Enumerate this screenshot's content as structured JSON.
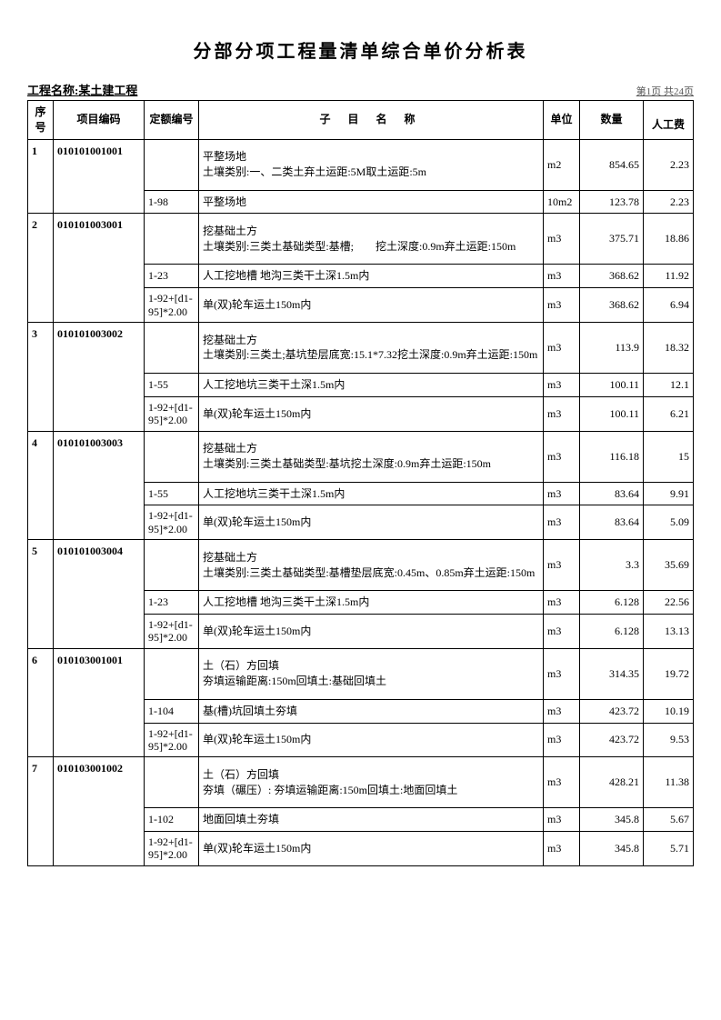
{
  "title": "分部分项工程量清单综合单价分析表",
  "project_label": "工程名称:",
  "project_name": "某土建工程",
  "page_info": "第1页 共24页",
  "headers": {
    "seq": "序号",
    "code": "项目编码",
    "quota": "定额编号",
    "name": "子 目 名 称",
    "unit": "单位",
    "qty": "数量",
    "labor": "人工费"
  },
  "rows": [
    {
      "seq": "1",
      "code": "010101001001",
      "quota": "",
      "name": "平整场地\n土壤类别:一、二类土弃土运距:5M取土运距:5m",
      "unit": "m2",
      "qty": "854.65",
      "labor": "2.23"
    },
    {
      "seq": "",
      "code": "",
      "quota": "1-98",
      "name": "平整场地",
      "unit": "10m2",
      "qty": "123.78",
      "labor": "2.23"
    },
    {
      "seq": "2",
      "code": "010101003001",
      "quota": "",
      "name": "挖基础土方\n土壤类别:三类土基础类型:基槽;　　挖土深度:0.9m弃土运距:150m",
      "unit": "m3",
      "qty": "375.71",
      "labor": "18.86"
    },
    {
      "seq": "",
      "code": "",
      "quota": "1-23",
      "name": "人工挖地槽 地沟三类干土深1.5m内",
      "unit": "m3",
      "qty": "368.62",
      "labor": "11.92"
    },
    {
      "seq": "",
      "code": "",
      "quota": "1-92+[d1-95]*2.00",
      "name": "单(双)轮车运土150m内",
      "unit": "m3",
      "qty": "368.62",
      "labor": "6.94"
    },
    {
      "seq": "3",
      "code": "010101003002",
      "quota": "",
      "name": "挖基础土方\n土壤类别:三类土;基坑垫层底宽:15.1*7.32挖土深度:0.9m弃土运距:150m",
      "unit": "m3",
      "qty": "113.9",
      "labor": "18.32"
    },
    {
      "seq": "",
      "code": "",
      "quota": "1-55",
      "name": "人工挖地坑三类干土深1.5m内",
      "unit": "m3",
      "qty": "100.11",
      "labor": "12.1"
    },
    {
      "seq": "",
      "code": "",
      "quota": "1-92+[d1-95]*2.00",
      "name": "单(双)轮车运土150m内",
      "unit": "m3",
      "qty": "100.11",
      "labor": "6.21"
    },
    {
      "seq": "4",
      "code": "010101003003",
      "quota": "",
      "name": "挖基础土方\n土壤类别:三类土基础类型:基坑挖土深度:0.9m弃土运距:150m",
      "unit": "m3",
      "qty": "116.18",
      "labor": "15"
    },
    {
      "seq": "",
      "code": "",
      "quota": "1-55",
      "name": "人工挖地坑三类干土深1.5m内",
      "unit": "m3",
      "qty": "83.64",
      "labor": "9.91"
    },
    {
      "seq": "",
      "code": "",
      "quota": "1-92+[d1-95]*2.00",
      "name": "单(双)轮车运土150m内",
      "unit": "m3",
      "qty": "83.64",
      "labor": "5.09"
    },
    {
      "seq": "5",
      "code": "010101003004",
      "quota": "",
      "name": "挖基础土方\n土壤类别:三类土基础类型:基槽垫层底宽:0.45m、0.85m弃土运距:150m",
      "unit": "m3",
      "qty": "3.3",
      "labor": "35.69"
    },
    {
      "seq": "",
      "code": "",
      "quota": "1-23",
      "name": "人工挖地槽 地沟三类干土深1.5m内",
      "unit": "m3",
      "qty": "6.128",
      "labor": "22.56"
    },
    {
      "seq": "",
      "code": "",
      "quota": "1-92+[d1-95]*2.00",
      "name": "单(双)轮车运土150m内",
      "unit": "m3",
      "qty": "6.128",
      "labor": "13.13"
    },
    {
      "seq": "6",
      "code": "010103001001",
      "quota": "",
      "name": "土（石）方回填\n夯填运输距离:150m回填土:基础回填土",
      "unit": "m3",
      "qty": "314.35",
      "labor": "19.72"
    },
    {
      "seq": "",
      "code": "",
      "quota": "1-104",
      "name": "基(槽)坑回填土夯填",
      "unit": "m3",
      "qty": "423.72",
      "labor": "10.19"
    },
    {
      "seq": "",
      "code": "",
      "quota": "1-92+[d1-95]*2.00",
      "name": "单(双)轮车运土150m内",
      "unit": "m3",
      "qty": "423.72",
      "labor": "9.53"
    },
    {
      "seq": "7",
      "code": "010103001002",
      "quota": "",
      "name": "土（石）方回填\n夯填（碾压）: 夯填运输距离:150m回填土:地面回填土",
      "unit": "m3",
      "qty": "428.21",
      "labor": "11.38"
    },
    {
      "seq": "",
      "code": "",
      "quota": "1-102",
      "name": "地面回填土夯填",
      "unit": "m3",
      "qty": "345.8",
      "labor": "5.67"
    },
    {
      "seq": "",
      "code": "",
      "quota": "1-92+[d1-95]*2.00",
      "name": "单(双)轮车运土150m内",
      "unit": "m3",
      "qty": "345.8",
      "labor": "5.71"
    }
  ],
  "row_heights": {
    "main_multi": 56,
    "main_two": 42,
    "sub": 22,
    "sub_wrap": 36
  }
}
